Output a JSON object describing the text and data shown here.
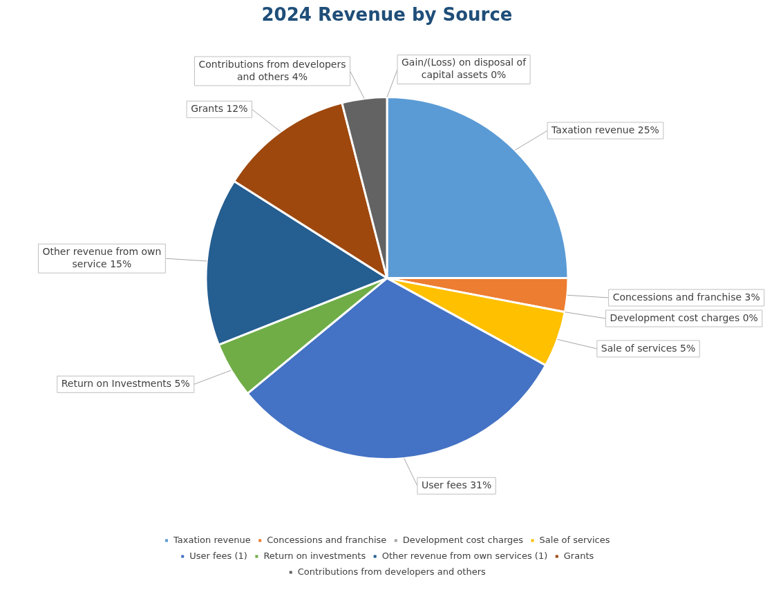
{
  "chart_data": {
    "type": "pie",
    "title": "2024 Revenue by Source",
    "categories": [
      "Taxation revenue",
      "Concessions and franchise",
      "Development cost charges",
      "Sale of services",
      "User fees (1)",
      "Return on investments",
      "Other revenue from own services (1)",
      "Grants",
      "Contributions from developers and others",
      null
    ],
    "values": [
      25,
      3,
      0,
      5,
      31,
      5,
      15,
      12,
      4,
      0
    ],
    "colors": [
      "#5b9bd5",
      "#ed7d31",
      "#a5a5a5",
      "#ffc000",
      "#4472c4",
      "#70ad47",
      "#255e91",
      "#9e480e",
      "#636363",
      "#997300"
    ],
    "value_labels": [
      "Taxation revenue 25%",
      "Concessions and franchise 3%",
      "Development cost charges 0%",
      "Sale of services 5%",
      "User fees 31%",
      "Return on Investments 5%",
      "Other revenue from own service 15%",
      "Grants 12%",
      "Contributions from developers and others 4%",
      "Gain/(Loss) on disposal of capital assets 0%"
    ],
    "legend": "bottom"
  }
}
